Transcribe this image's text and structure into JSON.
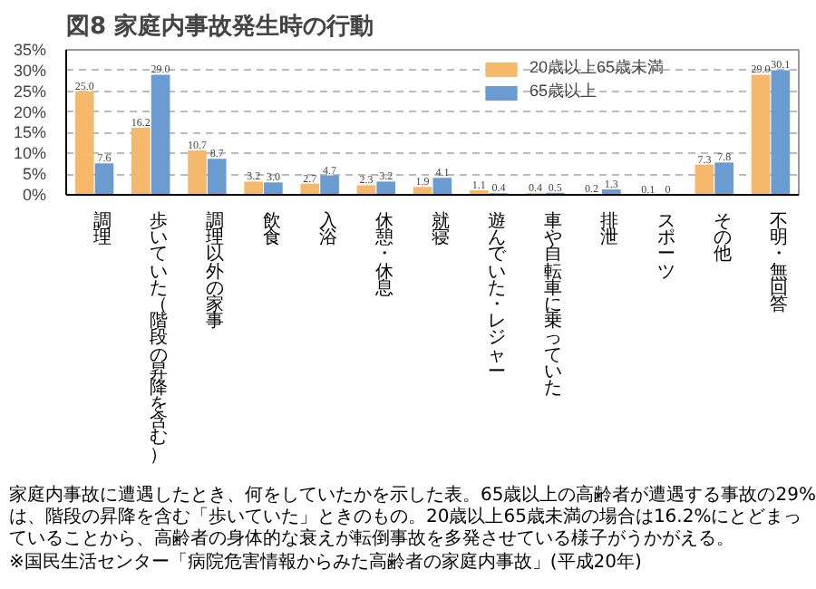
{
  "chart_data": {
    "type": "bar",
    "title": "図8 家庭内事故発生時の行動",
    "categories": [
      "調理",
      "歩いていた（階段の昇降を含む）",
      "調理以外の家事",
      "飲食",
      "入浴",
      "休憩・休息",
      "就寝",
      "遊んでいた・レジャー",
      "車や自転車に乗っていた",
      "排泄",
      "スポーツ",
      "その他",
      "不明・無回答"
    ],
    "series": [
      {
        "name": "20歳以上65歳未満",
        "color": "#f6b96b",
        "values": [
          25.0,
          16.2,
          10.7,
          3.2,
          2.7,
          2.3,
          1.9,
          1.1,
          0.4,
          0.2,
          0.1,
          7.3,
          29.0
        ],
        "value_labels": [
          "25.0",
          "16.2",
          "10.7",
          "3.2",
          "2.7",
          "2.3",
          "1.9",
          "1.1",
          "0.4",
          "0.2",
          "0.1",
          "7.3",
          "29.0"
        ]
      },
      {
        "name": "65歳以上",
        "color": "#6a9bd1",
        "values": [
          7.6,
          29.0,
          8.7,
          3.0,
          4.7,
          3.2,
          4.1,
          0.4,
          0.5,
          1.3,
          0,
          7.8,
          30.1
        ],
        "value_labels": [
          "7.6",
          "29.0",
          "8.7",
          "3.0",
          "4.7",
          "3.2",
          "4.1",
          "0.4",
          "0.5",
          "1.3",
          "0",
          "7.8",
          "30.1"
        ]
      }
    ],
    "ylim": [
      0,
      35
    ],
    "yticks": [
      {
        "value": 0,
        "label": "0%"
      },
      {
        "value": 5,
        "label": "5%"
      },
      {
        "value": 10,
        "label": "10%"
      },
      {
        "value": 15,
        "label": "15%"
      },
      {
        "value": 20,
        "label": "20%"
      },
      {
        "value": 25,
        "label": "25%"
      },
      {
        "value": 30,
        "label": "30%"
      },
      {
        "value": 35,
        "label": "35%"
      }
    ],
    "grid": "y",
    "legend": "top right",
    "annotations": [
      "家庭内事故に遭遇したとき、何をしていたかを示した表。65歳以上の高齢者が遭遇する事故の29%は、階段の昇降を含む「歩いていた」ときのもの。20歳以上65歳未満の場合は16.2%にとどまっていることから、高齢者の身体的な衰えが転倒事故を多発させている様子がうかがえる。",
      "※国民生活センター「病院危害情報からみた高齢者の家庭内事故」(平成20年)"
    ]
  }
}
